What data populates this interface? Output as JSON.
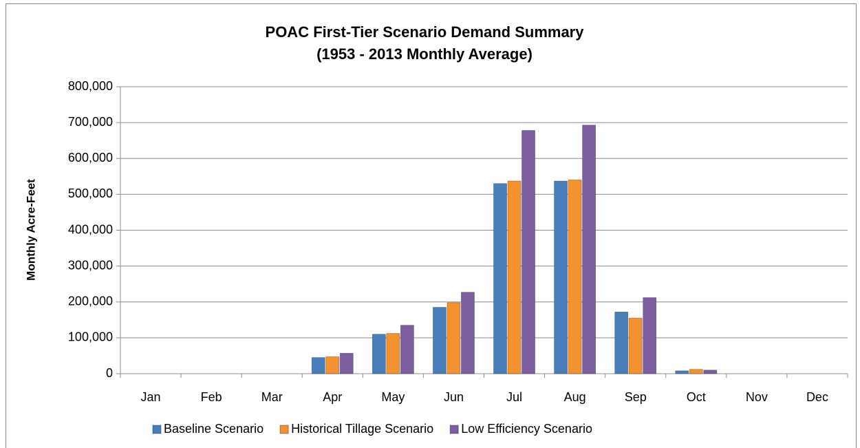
{
  "chart_data": {
    "type": "bar",
    "title": "POAC First-Tier Scenario Demand Summary",
    "subtitle": "(1953 - 2013 Monthly Average)",
    "y_label": "Monthly Acre-Feet",
    "categories": [
      "Jan",
      "Feb",
      "Mar",
      "Apr",
      "May",
      "Jun",
      "Jul",
      "Aug",
      "Sep",
      "Oct",
      "Nov",
      "Dec"
    ],
    "series": [
      {
        "name": "Baseline Scenario",
        "color": "#4a7ebb",
        "values": [
          0,
          0,
          0,
          45000,
          110000,
          185000,
          530000,
          537000,
          172000,
          8000,
          0,
          0
        ]
      },
      {
        "name": "Historical Tillage Scenario",
        "color": "#f3922e",
        "values": [
          0,
          0,
          0,
          47000,
          112000,
          198000,
          537000,
          540000,
          155000,
          12000,
          0,
          0
        ]
      },
      {
        "name": "Low Efficiency Scenario",
        "color": "#7d5fa0",
        "values": [
          0,
          0,
          0,
          57000,
          135000,
          227000,
          678000,
          693000,
          212000,
          10000,
          0,
          0
        ]
      }
    ],
    "ylim": [
      0,
      800000
    ],
    "yticks": [
      0,
      {
        "value": 100000,
        "label": "100,000"
      },
      {
        "value": 200000,
        "label": "200,000"
      },
      {
        "value": 300000,
        "label": "300,000"
      },
      {
        "value": 400000,
        "label": "400,000"
      },
      {
        "value": 500000,
        "label": "500,000"
      },
      {
        "value": 600000,
        "label": "600,000"
      },
      {
        "value": 700000,
        "label": "700,000"
      },
      {
        "value": 800000,
        "label": "800,000"
      }
    ],
    "grid": true,
    "legend": "bottom"
  }
}
